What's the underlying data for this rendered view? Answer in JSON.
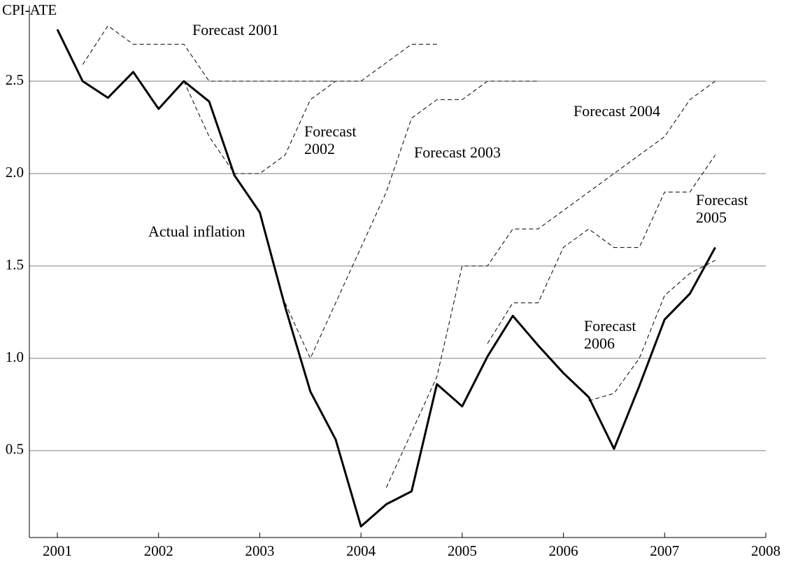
{
  "chart_data": {
    "type": "line",
    "y_label": "CPI-ATE",
    "xlim": [
      2001,
      2008
    ],
    "xticks": [
      2001,
      2002,
      2003,
      2004,
      2005,
      2006,
      2007,
      2008
    ],
    "ylim": [
      0.03,
      2.85
    ],
    "yticks": [
      0.5,
      {
        "value": 1,
        "label": "1.0"
      },
      1.5,
      {
        "value": 2,
        "label": "2.0"
      },
      2.5
    ],
    "grid": true,
    "series": [
      {
        "name": "Actual inflation",
        "color": "#000000",
        "dashed": false,
        "x": [
          2001,
          2001.25,
          2001.5,
          2001.75,
          2002,
          2002.25,
          2002.5,
          2002.75,
          2003,
          2003.25,
          2003.5,
          2003.75,
          2004,
          2004.25,
          2004.5,
          2004.75,
          2005,
          2005.25,
          2005.5,
          2005.75,
          2006,
          2006.25,
          2006.5,
          2006.75,
          2007,
          2007.25,
          2007.5
        ],
        "values": [
          2.78,
          2.5,
          2.41,
          2.55,
          2.35,
          2.5,
          2.39,
          1.99,
          1.79,
          1.28,
          0.82,
          0.56,
          0.09,
          0.21,
          0.28,
          0.86,
          0.74,
          1.01,
          1.23,
          1.07,
          0.92,
          0.79,
          0.51,
          0.85,
          1.21,
          1.35,
          1.6
        ]
      },
      {
        "name": "Forecast 2001",
        "color": "#000000",
        "dashed": true,
        "x": [
          2001.25,
          2001.5,
          2001.75,
          2002,
          2002.25,
          2002.5,
          2002.75,
          2003,
          2003.25,
          2003.5,
          2003.75
        ],
        "values": [
          2.59,
          2.8,
          2.7,
          2.7,
          2.7,
          2.5,
          2.5,
          2.5,
          2.5,
          2.5,
          2.5
        ]
      },
      {
        "name": "Forecast 2002",
        "color": "#000000",
        "dashed": true,
        "x": [
          2002.25,
          2002.5,
          2002.75,
          2003,
          2003.25,
          2003.5,
          2003.75,
          2004,
          2004.25,
          2004.5,
          2004.75
        ],
        "values": [
          2.5,
          2.2,
          2.0,
          2.0,
          2.1,
          2.4,
          2.5,
          2.5,
          2.6,
          2.7,
          2.7
        ]
      },
      {
        "name": "Forecast 2003",
        "color": "#000000",
        "dashed": true,
        "x": [
          2003.25,
          2003.5,
          2003.75,
          2004,
          2004.25,
          2004.5,
          2004.75,
          2005,
          2005.25,
          2005.5,
          2005.75
        ],
        "values": [
          1.3,
          1.0,
          1.3,
          1.6,
          1.9,
          2.3,
          2.4,
          2.4,
          2.5,
          2.5,
          2.5
        ]
      },
      {
        "name": "Forecast 2004",
        "color": "#000000",
        "dashed": true,
        "x": [
          2004.25,
          2004.5,
          2004.75,
          2005,
          2005.25,
          2005.5,
          2005.75,
          2006,
          2006.25,
          2006.5,
          2006.75,
          2007,
          2007.25,
          2007.5
        ],
        "values": [
          0.3,
          0.6,
          0.9,
          1.5,
          1.5,
          1.7,
          1.7,
          1.8,
          1.9,
          2.0,
          2.1,
          2.2,
          2.4,
          2.5
        ]
      },
      {
        "name": "Forecast 2005",
        "color": "#000000",
        "dashed": true,
        "x": [
          2005.25,
          2005.5,
          2005.75,
          2006,
          2006.25,
          2006.5,
          2006.75,
          2007,
          2007.25,
          2007.5
        ],
        "values": [
          1.08,
          1.3,
          1.3,
          1.6,
          1.7,
          1.6,
          1.6,
          1.9,
          1.9,
          2.1
        ]
      },
      {
        "name": "Forecast 2006",
        "color": "#000000",
        "dashed": true,
        "x": [
          2006.25,
          2006.5,
          2006.75,
          2007,
          2007.25,
          2007.5
        ],
        "values": [
          0.77,
          0.81,
          1.0,
          1.34,
          1.46,
          1.53
        ]
      }
    ]
  }
}
